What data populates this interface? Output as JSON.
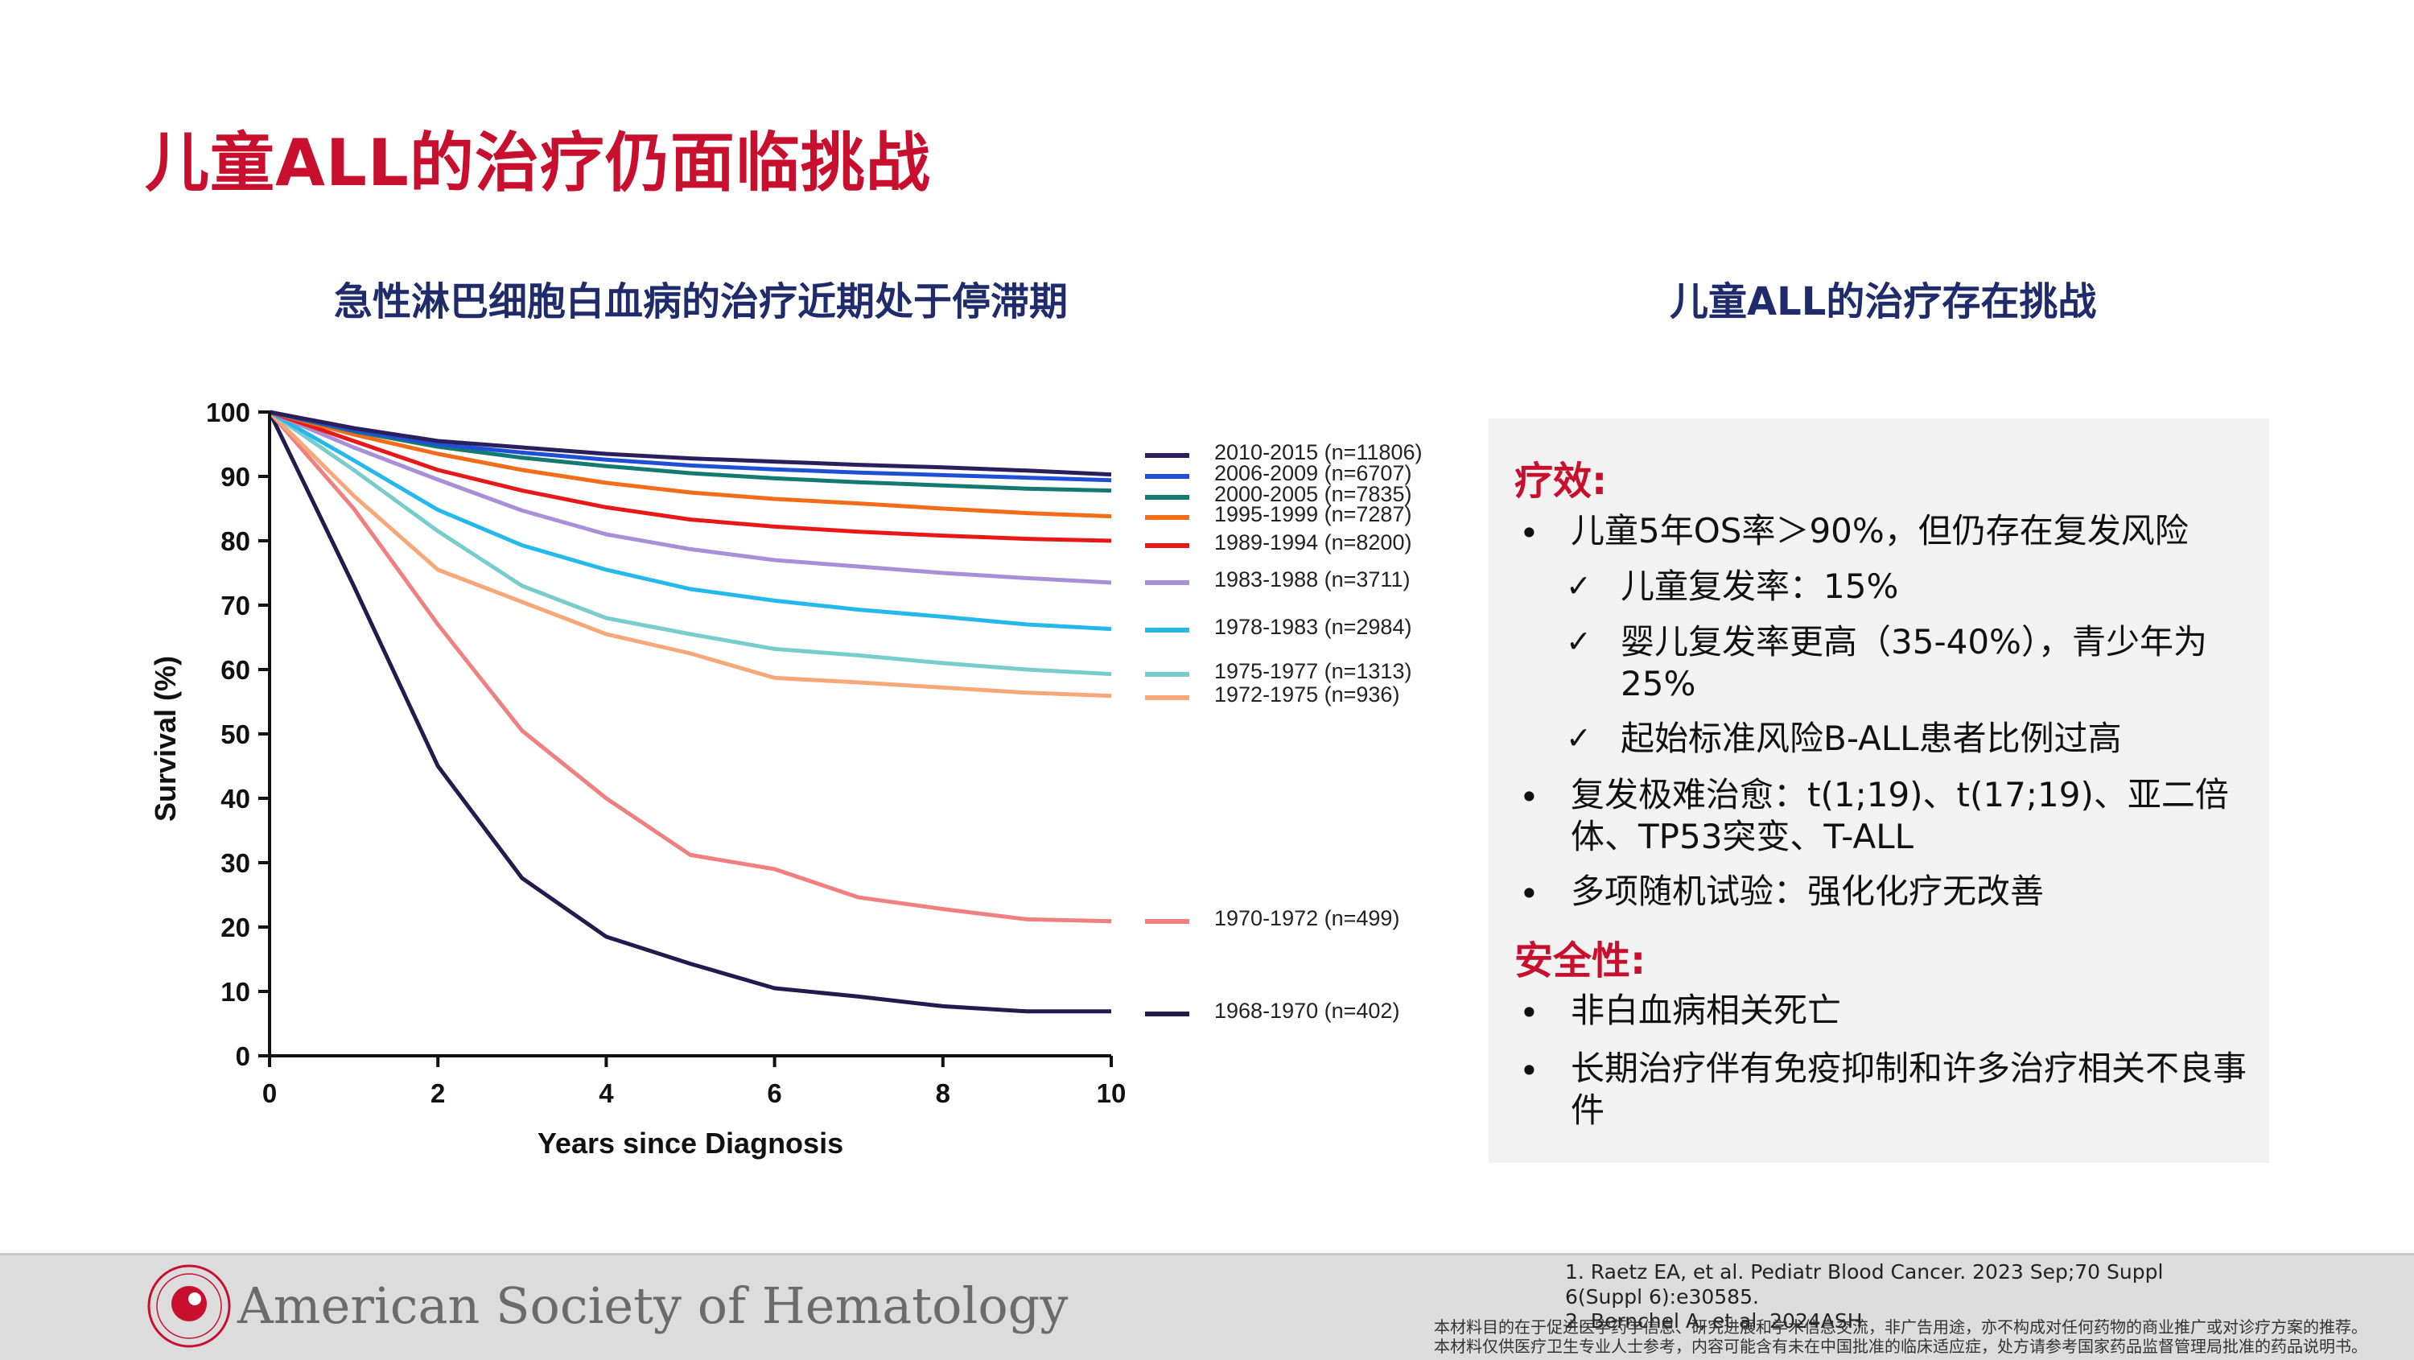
{
  "title": "儿童ALL的治疗仍面临挑战",
  "left_subtitle": "急性淋巴细胞白血病的治疗近期处于停滞期",
  "right_subtitle": "儿童ALL的治疗存在挑战",
  "chart_data": {
    "type": "line",
    "xlabel": "Years since Diagnosis",
    "ylabel": "Survival (%)",
    "xlim": [
      0,
      10
    ],
    "ylim": [
      0,
      100
    ],
    "xticks": [
      "0",
      "2",
      "4",
      "6",
      "8",
      "10"
    ],
    "yticks": [
      "0",
      "10",
      "20",
      "30",
      "40",
      "50",
      "60",
      "70",
      "80",
      "90",
      "100"
    ],
    "legend_position": "right",
    "series": [
      {
        "name": "2010-2015 (n=11806)",
        "color": "#2a1f5c",
        "x": [
          0,
          1,
          2,
          3,
          4,
          5,
          6,
          7,
          8,
          9,
          10
        ],
        "y": [
          100,
          97.5,
          95.5,
          94.5,
          93.5,
          92.8,
          92.3,
          91.8,
          91.4,
          90.9,
          90.3
        ]
      },
      {
        "name": "2006-2009 (n=6707)",
        "color": "#1f4fd6",
        "x": [
          0,
          1,
          2,
          3,
          4,
          5,
          6,
          7,
          8,
          9,
          10
        ],
        "y": [
          100,
          97.2,
          95,
          93.7,
          92.6,
          91.7,
          91.1,
          90.6,
          90.2,
          89.8,
          89.4
        ]
      },
      {
        "name": "2000-2005 (n=7835)",
        "color": "#137a72",
        "x": [
          0,
          1,
          2,
          3,
          4,
          5,
          6,
          7,
          8,
          9,
          10
        ],
        "y": [
          100,
          97,
          94.6,
          92.9,
          91.6,
          90.5,
          89.7,
          89.1,
          88.6,
          88.1,
          87.8
        ]
      },
      {
        "name": "1995-1999 (n=7287)",
        "color": "#f26c1a",
        "x": [
          0,
          1,
          2,
          3,
          4,
          5,
          6,
          7,
          8,
          9,
          10
        ],
        "y": [
          100,
          96.5,
          93.5,
          91,
          89,
          87.5,
          86.5,
          85.8,
          85,
          84.3,
          83.8
        ]
      },
      {
        "name": "1989-1994 (n=8200)",
        "color": "#e81818",
        "x": [
          0,
          1,
          2,
          3,
          4,
          5,
          6,
          7,
          8,
          9,
          10
        ],
        "y": [
          100,
          95.5,
          91,
          87.8,
          85.2,
          83.3,
          82.2,
          81.4,
          80.8,
          80.3,
          80
        ]
      },
      {
        "name": "1983-1988 (n=3711)",
        "color": "#a98fd8",
        "x": [
          0,
          1,
          2,
          3,
          4,
          5,
          6,
          7,
          8,
          9,
          10
        ],
        "y": [
          100,
          94.5,
          89.5,
          84.7,
          81,
          78.7,
          77,
          76,
          75,
          74.2,
          73.5
        ]
      },
      {
        "name": "1978-1983 (n=2984)",
        "color": "#25b8ea",
        "x": [
          0,
          1,
          2,
          3,
          4,
          5,
          6,
          7,
          8,
          9,
          10
        ],
        "y": [
          100,
          92.5,
          84.8,
          79.3,
          75.5,
          72.5,
          70.7,
          69.3,
          68.2,
          67,
          66.3
        ]
      },
      {
        "name": "1975-1977 (n=1313)",
        "color": "#79cccc",
        "x": [
          0,
          1,
          2,
          3,
          4,
          5,
          6,
          7,
          8,
          9,
          10
        ],
        "y": [
          100,
          91,
          81.5,
          73,
          68,
          65.5,
          63.2,
          62.2,
          61,
          60,
          59.3
        ]
      },
      {
        "name": "1972-1975 (n=936)",
        "color": "#f7a77a",
        "x": [
          0,
          1,
          2,
          3,
          4,
          5,
          6,
          7,
          8,
          9,
          10
        ],
        "y": [
          100,
          87,
          75.5,
          70.5,
          65.5,
          62.5,
          58.7,
          58,
          57.2,
          56.4,
          55.9
        ]
      },
      {
        "name": "1970-1972 (n=499)",
        "color": "#f08080",
        "x": [
          0,
          1,
          2,
          3,
          4,
          5,
          6,
          7,
          8,
          9,
          10
        ],
        "y": [
          100,
          85,
          67,
          50.5,
          40,
          31.2,
          29,
          24.6,
          22.8,
          21.2,
          20.9
        ]
      },
      {
        "name": "1968-1970 (n=402)",
        "color": "#241a4e",
        "x": [
          0,
          1,
          2,
          3,
          4,
          5,
          6,
          7,
          8,
          9,
          10
        ],
        "y": [
          100,
          73,
          45,
          27.6,
          18.5,
          14.3,
          10.5,
          9.2,
          7.7,
          6.9,
          6.9
        ]
      }
    ]
  },
  "panel": {
    "efficacy_heading": "疗效:",
    "b1": "儿童5年OS率＞90%，但仍存在复发风险",
    "c1": "儿童复发率：15%",
    "c2": "婴儿复发率更高（35-40%），青少年为25%",
    "c3": "起始标准风险B-ALL患者比例过高",
    "b2": "复发极难治愈：t(1;19)、t(17;19)、亚二倍体、TP53突变、T-ALL",
    "b3": "多项随机试验：强化化疗无改善",
    "safety_heading": "安全性:",
    "b4": "非白血病相关死亡",
    "b5": "长期治疗伴有免疫抑制和许多治疗相关不良事件",
    "bullet": "•",
    "check": "✓"
  },
  "footer": {
    "logo_text": "American Society of Hematology",
    "ref1": "1. Raetz EA, et al. Pediatr Blood Cancer. 2023 Sep;70 Suppl 6(Suppl 6):e30585.",
    "ref2": "2. Bernchel A, et al. 2024ASH",
    "disclaimer1": "本材料目的在于促进医学药学信息、研究进展和学术信息交流，非广告用途，亦不构成对任何药物的商业推广或对诊疗方案的推荐。",
    "disclaimer2": "本材料仅供医疗卫生专业人士参考，内容可能含有未在中国批准的临床适应症，处方请参考国家药品监督管理局批准的药品说明书。"
  }
}
